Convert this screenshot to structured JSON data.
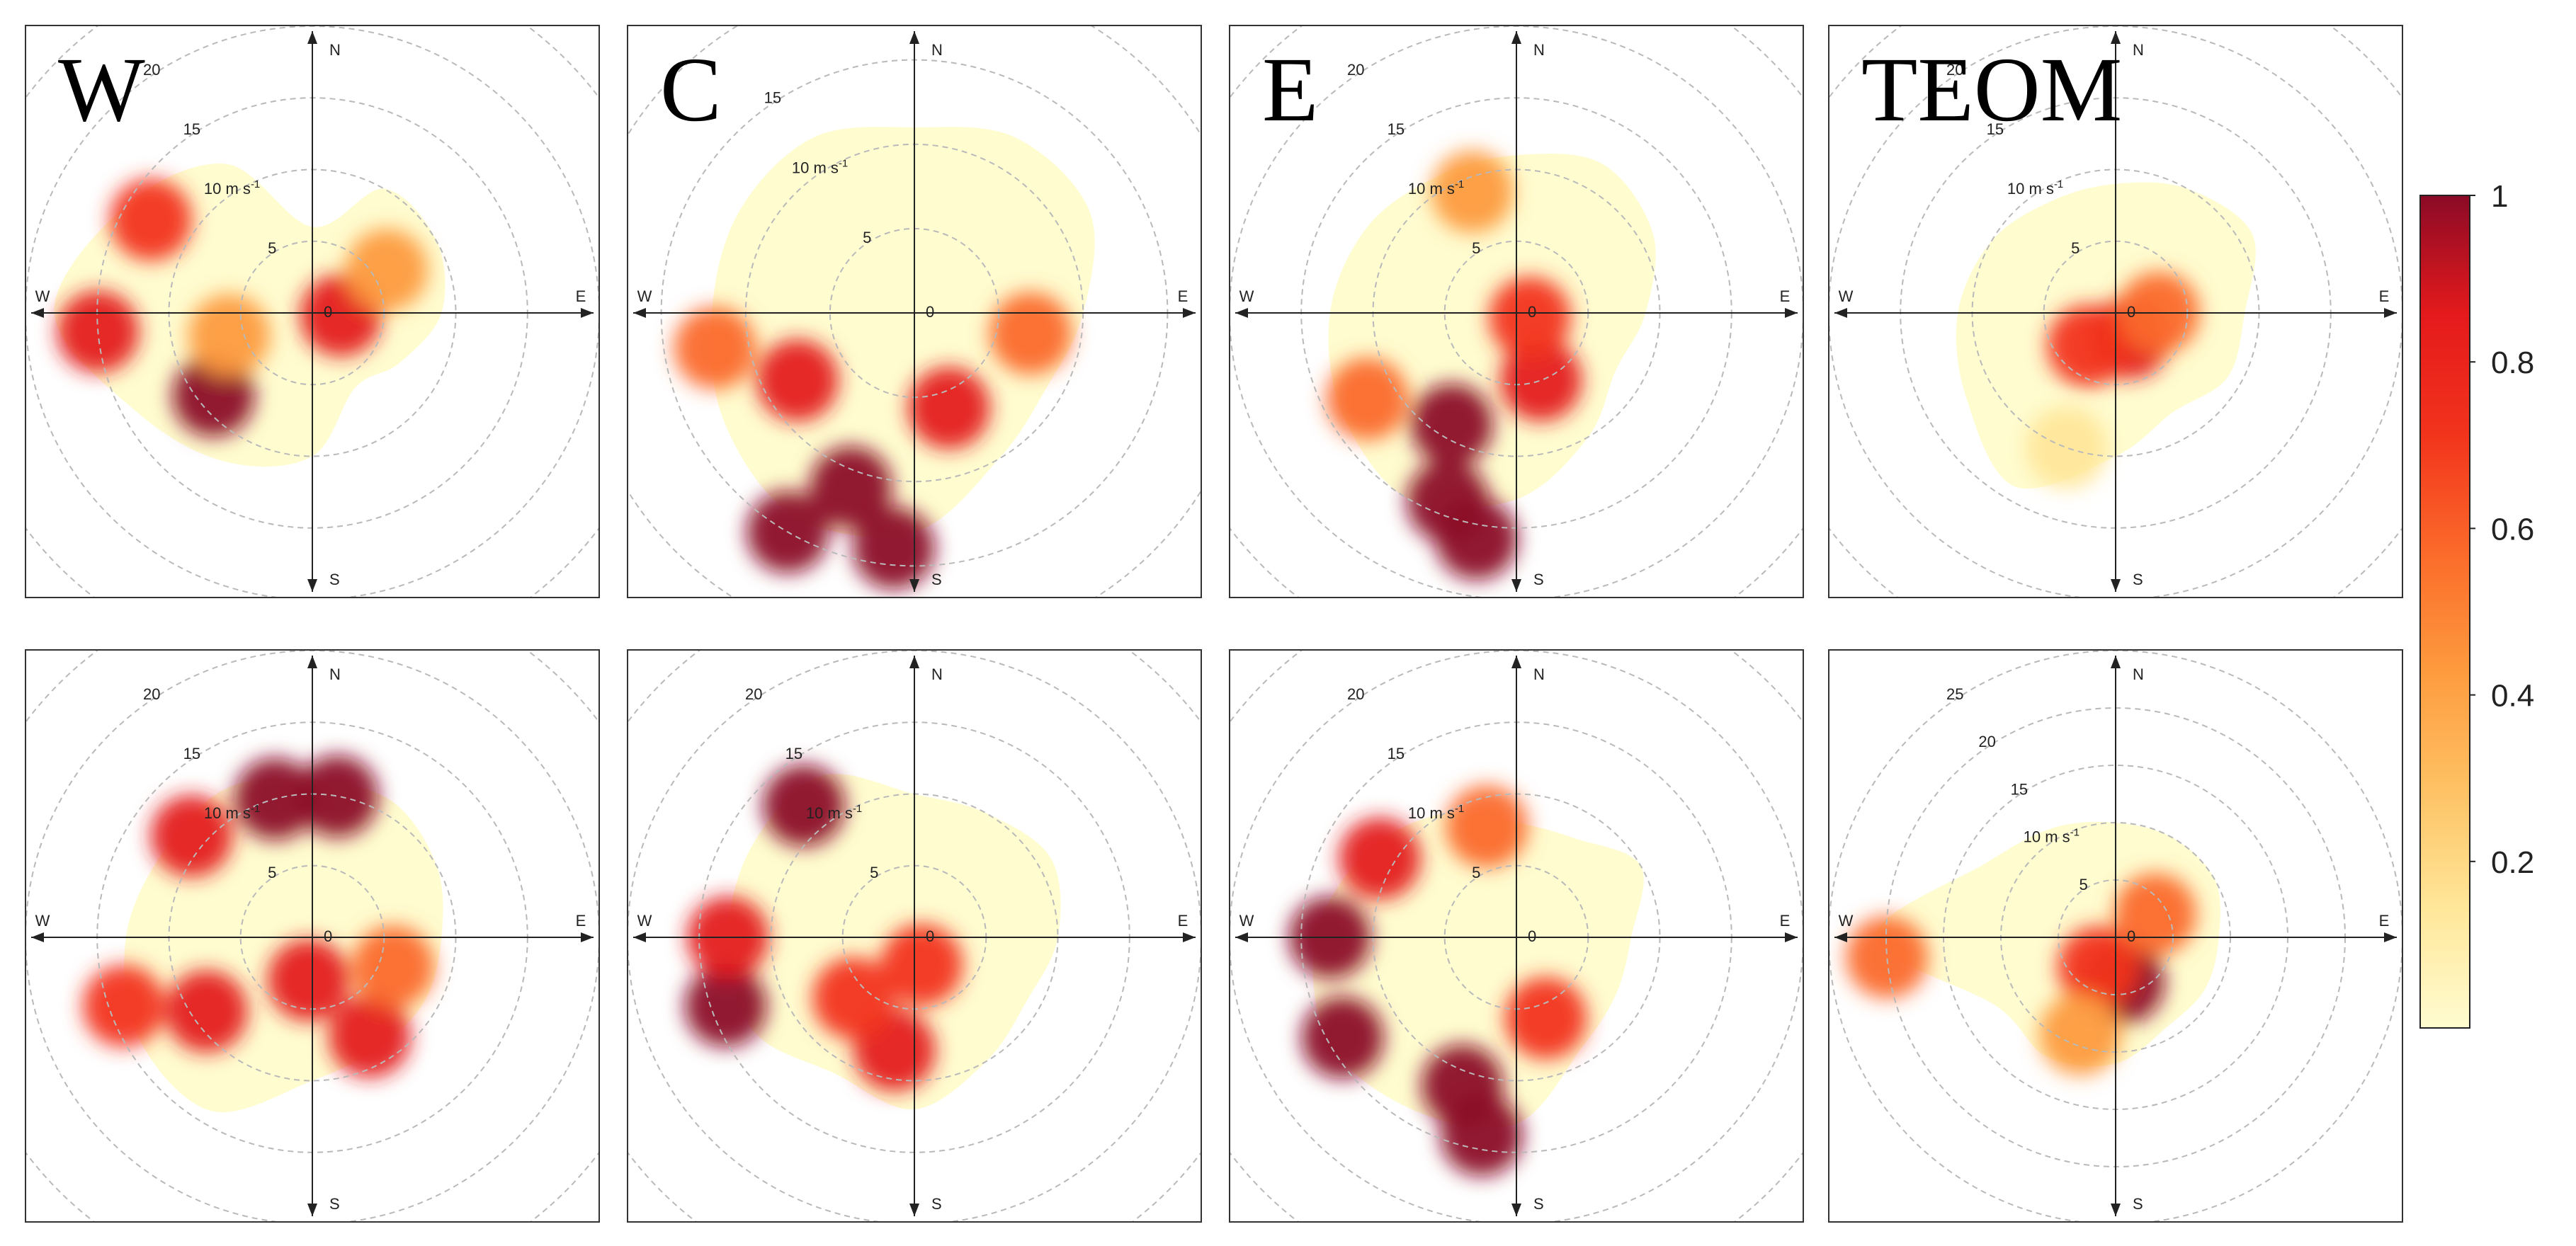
{
  "figure": {
    "columns": [
      "W",
      "C",
      "E",
      "TEOM"
    ],
    "rows": 2
  },
  "chart_data": [
    {
      "type": "heatmap",
      "subtype": "polar-plot",
      "panel": "W",
      "row": 1,
      "label": "W",
      "compass": [
        "N",
        "E",
        "S",
        "W"
      ],
      "center_label": "0",
      "radial_labels": [
        "5",
        "10 m s-1",
        "15",
        "20"
      ],
      "max_speed": 20,
      "blobs": [
        {
          "dir": 230,
          "speed": 9,
          "value": 1.0
        },
        {
          "dir": 265,
          "speed": 15,
          "value": 0.9
        },
        {
          "dir": 95,
          "speed": 2,
          "value": 0.85
        },
        {
          "dir": 300,
          "speed": 13,
          "value": 0.7
        },
        {
          "dir": 255,
          "speed": 6,
          "value": 0.45
        },
        {
          "dir": 60,
          "speed": 6,
          "value": 0.45
        }
      ],
      "coverage": [
        {
          "dir": 0,
          "speed": 6
        },
        {
          "dir": 30,
          "speed": 10
        },
        {
          "dir": 60,
          "speed": 10
        },
        {
          "dir": 90,
          "speed": 9
        },
        {
          "dir": 120,
          "speed": 7
        },
        {
          "dir": 150,
          "speed": 6
        },
        {
          "dir": 180,
          "speed": 10
        },
        {
          "dir": 210,
          "speed": 12
        },
        {
          "dir": 240,
          "speed": 14
        },
        {
          "dir": 270,
          "speed": 18
        },
        {
          "dir": 300,
          "speed": 15
        },
        {
          "dir": 330,
          "speed": 12
        }
      ]
    },
    {
      "type": "heatmap",
      "subtype": "polar-plot",
      "panel": "C",
      "row": 1,
      "label": "C",
      "compass": [
        "N",
        "E",
        "S",
        "W"
      ],
      "center_label": "0",
      "radial_labels": [
        "5",
        "10 m s-1",
        "15"
      ],
      "max_speed": 17,
      "blobs": [
        {
          "dir": 200,
          "speed": 11,
          "value": 1.0
        },
        {
          "dir": 210,
          "speed": 15,
          "value": 1.0
        },
        {
          "dir": 185,
          "speed": 14,
          "value": 1.0
        },
        {
          "dir": 160,
          "speed": 6,
          "value": 0.85
        },
        {
          "dir": 240,
          "speed": 8,
          "value": 0.85
        },
        {
          "dir": 260,
          "speed": 12,
          "value": 0.6
        },
        {
          "dir": 100,
          "speed": 7,
          "value": 0.5
        }
      ],
      "coverage": [
        {
          "dir": 0,
          "speed": 11
        },
        {
          "dir": 30,
          "speed": 12
        },
        {
          "dir": 60,
          "speed": 12
        },
        {
          "dir": 90,
          "speed": 10
        },
        {
          "dir": 120,
          "speed": 9
        },
        {
          "dir": 150,
          "speed": 10
        },
        {
          "dir": 180,
          "speed": 13
        },
        {
          "dir": 210,
          "speed": 14
        },
        {
          "dir": 240,
          "speed": 13
        },
        {
          "dir": 270,
          "speed": 12
        },
        {
          "dir": 300,
          "speed": 12
        },
        {
          "dir": 330,
          "speed": 12
        }
      ]
    },
    {
      "type": "heatmap",
      "subtype": "polar-plot",
      "panel": "E",
      "row": 1,
      "label": "E",
      "compass": [
        "N",
        "E",
        "S",
        "W"
      ],
      "center_label": "0",
      "radial_labels": [
        "5",
        "10 m s-1",
        "15",
        "20"
      ],
      "max_speed": 20,
      "blobs": [
        {
          "dir": 210,
          "speed": 9,
          "value": 0.95
        },
        {
          "dir": 200,
          "speed": 14,
          "value": 1.0
        },
        {
          "dir": 190,
          "speed": 16,
          "value": 1.0
        },
        {
          "dir": 160,
          "speed": 5,
          "value": 0.8
        },
        {
          "dir": 110,
          "speed": 1,
          "value": 0.75
        },
        {
          "dir": 240,
          "speed": 12,
          "value": 0.55
        },
        {
          "dir": 340,
          "speed": 9,
          "value": 0.4
        }
      ],
      "coverage": [
        {
          "dir": 0,
          "speed": 11
        },
        {
          "dir": 30,
          "speed": 12
        },
        {
          "dir": 60,
          "speed": 11
        },
        {
          "dir": 90,
          "speed": 9
        },
        {
          "dir": 120,
          "speed": 8
        },
        {
          "dir": 150,
          "speed": 10
        },
        {
          "dir": 180,
          "speed": 13
        },
        {
          "dir": 210,
          "speed": 15
        },
        {
          "dir": 240,
          "speed": 14
        },
        {
          "dir": 270,
          "speed": 13
        },
        {
          "dir": 300,
          "speed": 12
        },
        {
          "dir": 330,
          "speed": 11
        }
      ]
    },
    {
      "type": "heatmap",
      "subtype": "polar-plot",
      "panel": "TEOM",
      "row": 1,
      "label": "TEOM",
      "compass": [
        "N",
        "E",
        "S",
        "W"
      ],
      "center_label": "0",
      "radial_labels": [
        "5",
        "10 m s-1",
        "15",
        "20"
      ],
      "max_speed": 20,
      "blobs": [
        {
          "dir": 150,
          "speed": 2,
          "value": 0.85
        },
        {
          "dir": 220,
          "speed": 3,
          "value": 0.65
        },
        {
          "dir": 90,
          "speed": 3,
          "value": 0.55
        },
        {
          "dir": 200,
          "speed": 10,
          "value": 0.2
        }
      ],
      "coverage": [
        {
          "dir": 0,
          "speed": 9
        },
        {
          "dir": 30,
          "speed": 10
        },
        {
          "dir": 60,
          "speed": 11
        },
        {
          "dir": 90,
          "speed": 9
        },
        {
          "dir": 120,
          "speed": 9
        },
        {
          "dir": 150,
          "speed": 8
        },
        {
          "dir": 180,
          "speed": 10
        },
        {
          "dir": 210,
          "speed": 14
        },
        {
          "dir": 240,
          "speed": 12
        },
        {
          "dir": 270,
          "speed": 11
        },
        {
          "dir": 300,
          "speed": 10
        },
        {
          "dir": 330,
          "speed": 9
        }
      ]
    },
    {
      "type": "heatmap",
      "subtype": "polar-plot",
      "panel": "W",
      "row": 2,
      "label": "",
      "compass": [
        "N",
        "E",
        "S",
        "W"
      ],
      "center_label": "0",
      "radial_labels": [
        "5",
        "10 m s-1",
        "15",
        "20"
      ],
      "max_speed": 20,
      "blobs": [
        {
          "dir": 345,
          "speed": 10,
          "value": 1.0
        },
        {
          "dir": 10,
          "speed": 10,
          "value": 0.95
        },
        {
          "dir": 310,
          "speed": 11,
          "value": 0.85
        },
        {
          "dir": 235,
          "speed": 9,
          "value": 0.85
        },
        {
          "dir": 150,
          "speed": 8,
          "value": 0.9
        },
        {
          "dir": 185,
          "speed": 3,
          "value": 0.8
        },
        {
          "dir": 250,
          "speed": 14,
          "value": 0.65
        },
        {
          "dir": 110,
          "speed": 6,
          "value": 0.6
        }
      ],
      "coverage": [
        {
          "dir": 0,
          "speed": 11
        },
        {
          "dir": 30,
          "speed": 11
        },
        {
          "dir": 60,
          "speed": 10
        },
        {
          "dir": 90,
          "speed": 9
        },
        {
          "dir": 120,
          "speed": 9
        },
        {
          "dir": 150,
          "speed": 9
        },
        {
          "dir": 180,
          "speed": 10
        },
        {
          "dir": 210,
          "speed": 14
        },
        {
          "dir": 240,
          "speed": 14
        },
        {
          "dir": 270,
          "speed": 13
        },
        {
          "dir": 300,
          "speed": 12
        },
        {
          "dir": 330,
          "speed": 12
        }
      ]
    },
    {
      "type": "heatmap",
      "subtype": "polar-plot",
      "panel": "C",
      "row": 2,
      "label": "",
      "compass": [
        "N",
        "E",
        "S",
        "W"
      ],
      "center_label": "0",
      "radial_labels": [
        "5",
        "10 m s-1",
        "15",
        "20"
      ],
      "max_speed": 20,
      "blobs": [
        {
          "dir": 320,
          "speed": 12,
          "value": 1.0
        },
        {
          "dir": 250,
          "speed": 14,
          "value": 1.0
        },
        {
          "dir": 270,
          "speed": 13,
          "value": 0.9
        },
        {
          "dir": 190,
          "speed": 8,
          "value": 0.85
        },
        {
          "dir": 165,
          "speed": 2,
          "value": 0.75
        },
        {
          "dir": 225,
          "speed": 6,
          "value": 0.65
        }
      ],
      "coverage": [
        {
          "dir": 0,
          "speed": 10
        },
        {
          "dir": 30,
          "speed": 10
        },
        {
          "dir": 60,
          "speed": 11
        },
        {
          "dir": 90,
          "speed": 10
        },
        {
          "dir": 120,
          "speed": 9
        },
        {
          "dir": 150,
          "speed": 10
        },
        {
          "dir": 180,
          "speed": 12
        },
        {
          "dir": 210,
          "speed": 11
        },
        {
          "dir": 240,
          "speed": 13
        },
        {
          "dir": 270,
          "speed": 13
        },
        {
          "dir": 300,
          "speed": 13
        },
        {
          "dir": 330,
          "speed": 13
        }
      ]
    },
    {
      "type": "heatmap",
      "subtype": "polar-plot",
      "panel": "E",
      "row": 2,
      "label": "",
      "compass": [
        "N",
        "E",
        "S",
        "W"
      ],
      "center_label": "0",
      "radial_labels": [
        "5",
        "10 m s-1",
        "15",
        "20"
      ],
      "max_speed": 20,
      "blobs": [
        {
          "dir": 240,
          "speed": 14,
          "value": 1.0
        },
        {
          "dir": 200,
          "speed": 11,
          "value": 1.0
        },
        {
          "dir": 190,
          "speed": 14,
          "value": 1.0
        },
        {
          "dir": 300,
          "speed": 11,
          "value": 0.9
        },
        {
          "dir": 270,
          "speed": 13,
          "value": 0.95
        },
        {
          "dir": 160,
          "speed": 6,
          "value": 0.75
        },
        {
          "dir": 345,
          "speed": 8,
          "value": 0.5
        }
      ],
      "coverage": [
        {
          "dir": 0,
          "speed": 8
        },
        {
          "dir": 30,
          "speed": 8
        },
        {
          "dir": 60,
          "speed": 10
        },
        {
          "dir": 90,
          "speed": 8
        },
        {
          "dir": 120,
          "speed": 8
        },
        {
          "dir": 150,
          "speed": 9
        },
        {
          "dir": 180,
          "speed": 13
        },
        {
          "dir": 210,
          "speed": 14
        },
        {
          "dir": 240,
          "speed": 15
        },
        {
          "dir": 270,
          "speed": 14
        },
        {
          "dir": 300,
          "speed": 12
        },
        {
          "dir": 330,
          "speed": 10
        }
      ]
    },
    {
      "type": "heatmap",
      "subtype": "polar-plot",
      "panel": "TEOM",
      "row": 2,
      "label": "",
      "compass": [
        "N",
        "E",
        "S",
        "W"
      ],
      "center_label": "0",
      "radial_labels": [
        "5",
        "10 m s-1",
        "15",
        "20",
        "25"
      ],
      "max_speed": 25,
      "blobs": [
        {
          "dir": 170,
          "speed": 4,
          "value": 0.95
        },
        {
          "dir": 210,
          "speed": 3,
          "value": 0.75
        },
        {
          "dir": 60,
          "speed": 4,
          "value": 0.6
        },
        {
          "dir": 265,
          "speed": 20,
          "value": 0.55
        },
        {
          "dir": 200,
          "speed": 9,
          "value": 0.45
        }
      ],
      "coverage": [
        {
          "dir": 0,
          "speed": 10
        },
        {
          "dir": 30,
          "speed": 10
        },
        {
          "dir": 60,
          "speed": 10
        },
        {
          "dir": 90,
          "speed": 9
        },
        {
          "dir": 120,
          "speed": 9
        },
        {
          "dir": 150,
          "speed": 9
        },
        {
          "dir": 180,
          "speed": 11
        },
        {
          "dir": 210,
          "speed": 12
        },
        {
          "dir": 240,
          "speed": 12
        },
        {
          "dir": 270,
          "speed": 21
        },
        {
          "dir": 300,
          "speed": 13
        },
        {
          "dir": 330,
          "speed": 11
        }
      ]
    }
  ],
  "colorbar": {
    "ticks": [
      "1",
      "0.8",
      "0.6",
      "0.4",
      "0.2"
    ],
    "tick_values": [
      1,
      0.8,
      0.6,
      0.4,
      0.2
    ],
    "range": [
      0,
      1
    ],
    "colors": [
      "#fffcd0",
      "#ffe79a",
      "#fec264",
      "#fd9b3e",
      "#fb6a2a",
      "#f2331c",
      "#e41a1c",
      "#8b0a26"
    ]
  }
}
